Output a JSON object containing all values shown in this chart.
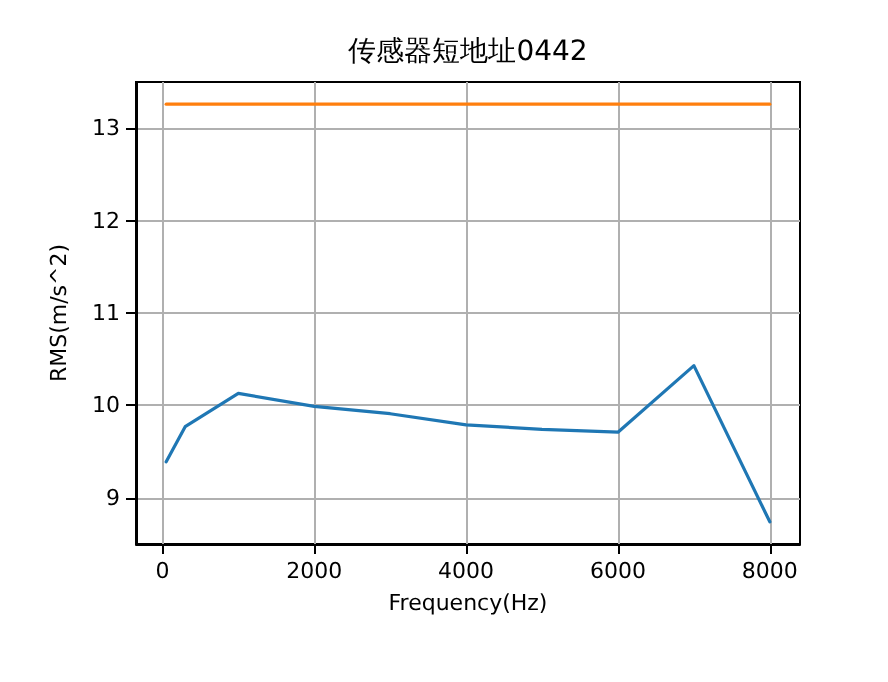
{
  "chart_data": {
    "type": "line",
    "title": "传感器短地址0442",
    "xlabel": "Frequency(Hz)",
    "ylabel": "RMS(m/s^2)",
    "xlim": [
      -347.5,
      8397.5
    ],
    "xticks": [
      0,
      2000,
      4000,
      6000,
      8000
    ],
    "ylim": [
      8.5,
      13.5
    ],
    "yticks": [
      9,
      10,
      11,
      12,
      13
    ],
    "grid": true,
    "series": [
      {
        "color": "#1f77b4",
        "x": [
          50,
          300,
          1000,
          2000,
          3000,
          4000,
          5000,
          6000,
          7000,
          8000
        ],
        "values": [
          9.39,
          9.77,
          10.13,
          9.99,
          9.91,
          9.79,
          9.74,
          9.71,
          10.43,
          8.74
        ]
      },
      {
        "color": "#ff7f0e",
        "x": [
          50,
          8000
        ],
        "values": [
          13.26,
          13.26
        ]
      }
    ]
  }
}
